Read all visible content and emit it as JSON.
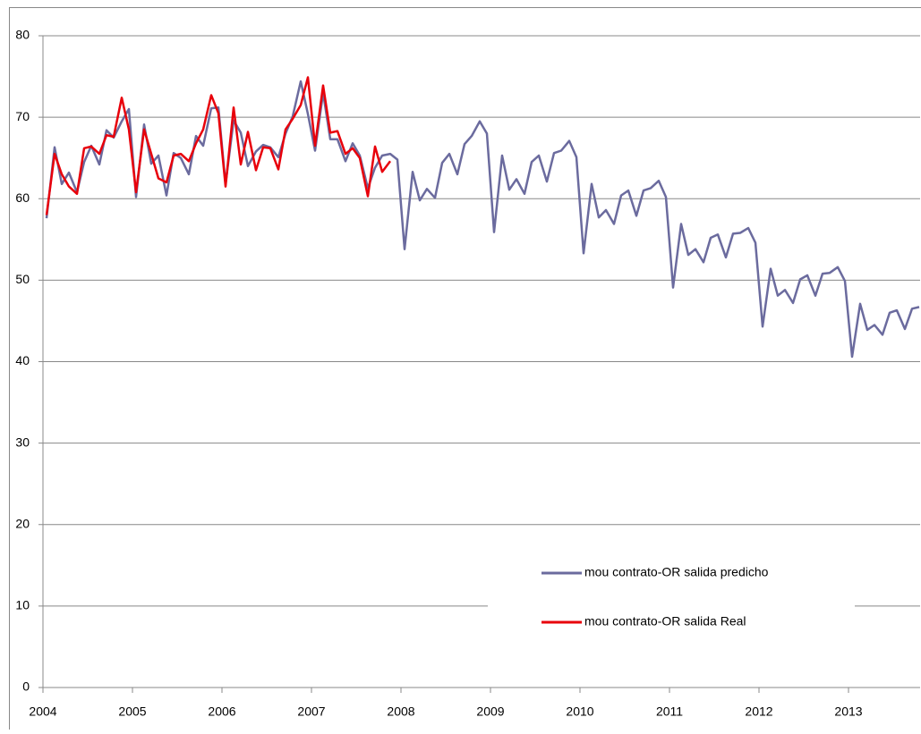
{
  "chart_data": {
    "type": "line",
    "x": [
      2004.04,
      2004.13,
      2004.21,
      2004.29,
      2004.38,
      2004.46,
      2004.54,
      2004.63,
      2004.71,
      2004.79,
      2004.88,
      2004.96,
      2005.04,
      2005.13,
      2005.21,
      2005.29,
      2005.38,
      2005.46,
      2005.54,
      2005.63,
      2005.71,
      2005.79,
      2005.88,
      2005.96,
      2006.04,
      2006.13,
      2006.21,
      2006.29,
      2006.38,
      2006.46,
      2006.54,
      2006.63,
      2006.71,
      2006.79,
      2006.88,
      2006.96,
      2007.04,
      2007.13,
      2007.21,
      2007.29,
      2007.38,
      2007.46,
      2007.54,
      2007.63,
      2007.71,
      2007.79,
      2007.88,
      2007.96,
      2008.04,
      2008.13,
      2008.21,
      2008.29,
      2008.38,
      2008.46,
      2008.54,
      2008.63,
      2008.71,
      2008.79,
      2008.88,
      2008.96,
      2009.04,
      2009.13,
      2009.21,
      2009.29,
      2009.38,
      2009.46,
      2009.54,
      2009.63,
      2009.71,
      2009.79,
      2009.88,
      2009.96,
      2010.04,
      2010.13,
      2010.21,
      2010.29,
      2010.38,
      2010.46,
      2010.54,
      2010.63,
      2010.71,
      2010.79,
      2010.88,
      2010.96,
      2011.04,
      2011.13,
      2011.21,
      2011.29,
      2011.38,
      2011.46,
      2011.54,
      2011.63,
      2011.71,
      2011.79,
      2011.88,
      2011.96,
      2012.04,
      2012.13,
      2012.21,
      2012.29,
      2012.38,
      2012.46,
      2012.54,
      2012.63,
      2012.71,
      2012.79,
      2012.88,
      2012.96,
      2013.04,
      2013.13,
      2013.21,
      2013.29,
      2013.38,
      2013.46,
      2013.54,
      2013.63,
      2013.71,
      2013.79
    ],
    "series": [
      {
        "name": "mou contrato-OR salida predicho",
        "color": "#6b6b9e",
        "values": [
          57.6,
          66.3,
          61.8,
          63.2,
          60.8,
          64.5,
          66.5,
          64.2,
          68.4,
          67.5,
          69.5,
          71.0,
          60.2,
          69.1,
          64.3,
          65.3,
          60.4,
          65.6,
          65.0,
          63.0,
          67.7,
          66.5,
          71.1,
          71.2,
          61.8,
          69.6,
          68.1,
          64.0,
          65.8,
          66.6,
          66.3,
          65.1,
          68.0,
          70.1,
          74.4,
          70.4,
          65.9,
          73.0,
          67.3,
          67.3,
          64.6,
          66.8,
          65.3,
          61.3,
          63.8,
          65.3,
          65.5,
          64.8,
          53.8,
          63.3,
          59.8,
          61.2,
          60.1,
          64.4,
          65.5,
          63.0,
          66.7,
          67.7,
          69.5,
          68.0,
          55.9,
          65.3,
          61.1,
          62.4,
          60.6,
          64.5,
          65.3,
          62.1,
          65.6,
          65.9,
          67.1,
          65.1,
          53.3,
          61.8,
          57.7,
          58.6,
          56.9,
          60.4,
          61.0,
          57.9,
          61.0,
          61.3,
          62.2,
          60.2,
          49.1,
          56.9,
          53.1,
          53.8,
          52.2,
          55.2,
          55.6,
          52.8,
          55.7,
          55.8,
          56.4,
          54.6,
          44.3,
          51.4,
          48.1,
          48.8,
          47.2,
          50.1,
          50.6,
          48.1,
          50.8,
          50.9,
          51.6,
          49.9,
          40.6,
          47.1,
          43.9,
          44.5,
          43.3,
          46.0,
          46.3,
          44.0,
          46.5,
          46.7
        ]
      },
      {
        "name": "mou contrato-OR salida Real",
        "color": "#e8000b",
        "values": [
          58.0,
          65.5,
          63.0,
          61.5,
          60.6,
          66.2,
          66.4,
          65.5,
          67.8,
          67.6,
          72.4,
          68.5,
          60.8,
          68.5,
          65.5,
          62.5,
          62.0,
          65.3,
          65.5,
          64.6,
          66.8,
          68.5,
          72.7,
          70.5,
          61.5,
          71.2,
          64.2,
          68.2,
          63.5,
          66.3,
          66.2,
          63.6,
          68.5,
          69.8,
          71.5,
          74.9,
          66.5,
          73.9,
          68.1,
          68.3,
          65.5,
          66.2,
          65.0,
          60.3,
          66.4,
          63.3,
          64.6,
          null,
          null,
          null,
          null,
          null,
          null,
          null,
          null,
          null,
          null,
          null,
          null,
          null,
          null,
          null,
          null,
          null,
          null,
          null,
          null,
          null,
          null,
          null,
          null,
          null,
          null,
          null,
          null,
          null,
          null,
          null,
          null,
          null,
          null,
          null,
          null,
          null,
          null,
          null,
          null,
          null,
          null,
          null,
          null,
          null,
          null,
          null,
          null,
          null,
          null,
          null,
          null,
          null,
          null,
          null,
          null,
          null,
          null,
          null,
          null,
          null,
          null,
          null,
          null,
          null,
          null,
          null,
          null,
          null,
          null,
          null
        ]
      }
    ],
    "xlim": [
      2004,
      2013.8
    ],
    "xticks": [
      2004,
      2005,
      2006,
      2007,
      2008,
      2009,
      2010,
      2011,
      2012,
      2013
    ],
    "ylim": [
      0,
      80
    ],
    "yticks": [
      0,
      10,
      20,
      30,
      40,
      50,
      60,
      70,
      80
    ],
    "grid": true,
    "legend_position": "lower right"
  }
}
